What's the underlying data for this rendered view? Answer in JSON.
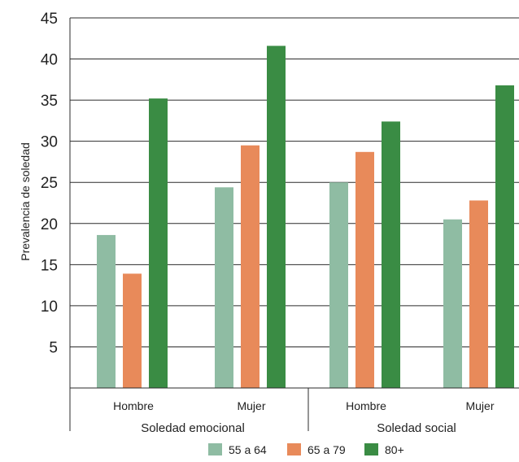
{
  "chart_data": {
    "type": "bar",
    "title": "",
    "xlabel": "",
    "ylabel": "Prevalencia de soledad",
    "ylim": [
      0,
      45
    ],
    "yticks": [
      "5",
      "10",
      "15",
      "20",
      "25",
      "30",
      "35",
      "40",
      "45"
    ],
    "grid": true,
    "legend_position": "bottom",
    "groups": [
      {
        "label": "Soledad emocional",
        "categories": [
          "Hombre",
          "Mujer"
        ]
      },
      {
        "label": "Soledad social",
        "categories": [
          "Hombre",
          "Mujer"
        ]
      }
    ],
    "categories": [
      "Hombre",
      "Mujer",
      "Hombre",
      "Mujer"
    ],
    "series": [
      {
        "name": "55 a 64",
        "color": "#8fbca3",
        "values": [
          18.6,
          24.4,
          25.0,
          20.5
        ]
      },
      {
        "name": "65 a 79",
        "color": "#e88a5a",
        "values": [
          13.9,
          29.5,
          28.7,
          22.8
        ]
      },
      {
        "name": "80+",
        "color": "#3a8c44",
        "values": [
          35.2,
          41.6,
          32.4,
          36.8
        ]
      }
    ]
  }
}
